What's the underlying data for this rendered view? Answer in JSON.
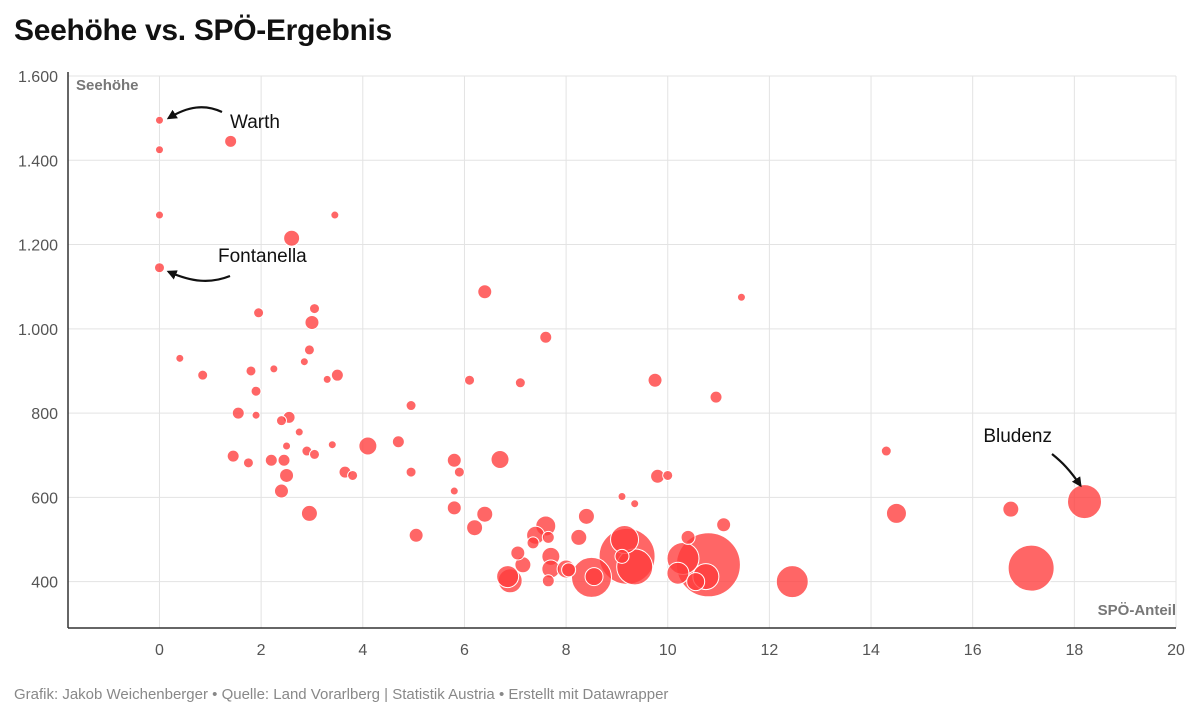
{
  "title": "Seehöhe vs. SPÖ-Ergebnis",
  "footer": "Grafik: Jakob Weichenberger • Quelle: Land Vorarlberg | Statistik Austria • Erstellt mit Datawrapper",
  "colors": {
    "point": "#ff3b3b",
    "annotation": "#111111",
    "grid": "#e3e3e3",
    "axis": "#333333"
  },
  "chart_data": {
    "type": "scatter",
    "title": "Seehöhe vs. SPÖ-Ergebnis",
    "xlabel": "SPÖ-Anteil",
    "ylabel": "Seehöhe",
    "xlim": [
      -1.8,
      20
    ],
    "ylim": [
      290,
      1600
    ],
    "x_ticks": [
      0,
      2,
      4,
      6,
      8,
      10,
      12,
      14,
      16,
      18,
      20
    ],
    "y_ticks": [
      400,
      600,
      800,
      1000,
      1200,
      1400,
      1600
    ],
    "x_tick_labels": [
      "0",
      "2",
      "4",
      "6",
      "8",
      "10",
      "12",
      "14",
      "16",
      "18",
      "20"
    ],
    "y_tick_labels": [
      "400",
      "600",
      "800",
      "1.000",
      "1.200",
      "1.400",
      "1.600"
    ],
    "grid": true,
    "size_encoding": "population (bubble size)",
    "points": [
      {
        "x": 0.0,
        "y": 1495,
        "s": 4
      },
      {
        "x": 0.0,
        "y": 1425,
        "s": 4
      },
      {
        "x": 0.0,
        "y": 1270,
        "s": 4
      },
      {
        "x": 0.0,
        "y": 1145,
        "s": 5
      },
      {
        "x": 1.4,
        "y": 1445,
        "s": 6
      },
      {
        "x": 2.6,
        "y": 1215,
        "s": 8
      },
      {
        "x": 3.45,
        "y": 1270,
        "s": 4
      },
      {
        "x": 1.95,
        "y": 1038,
        "s": 5
      },
      {
        "x": 3.05,
        "y": 1048,
        "s": 5
      },
      {
        "x": 3.0,
        "y": 1015,
        "s": 7
      },
      {
        "x": 2.95,
        "y": 950,
        "s": 5
      },
      {
        "x": 2.85,
        "y": 922,
        "s": 4
      },
      {
        "x": 0.4,
        "y": 930,
        "s": 4
      },
      {
        "x": 0.85,
        "y": 890,
        "s": 5
      },
      {
        "x": 1.8,
        "y": 900,
        "s": 5
      },
      {
        "x": 2.25,
        "y": 905,
        "s": 4
      },
      {
        "x": 1.9,
        "y": 852,
        "s": 5
      },
      {
        "x": 3.3,
        "y": 880,
        "s": 4
      },
      {
        "x": 3.5,
        "y": 890,
        "s": 6
      },
      {
        "x": 1.55,
        "y": 800,
        "s": 6
      },
      {
        "x": 1.9,
        "y": 795,
        "s": 4
      },
      {
        "x": 2.4,
        "y": 782,
        "s": 5
      },
      {
        "x": 2.55,
        "y": 790,
        "s": 6
      },
      {
        "x": 2.75,
        "y": 755,
        "s": 4
      },
      {
        "x": 2.5,
        "y": 722,
        "s": 4
      },
      {
        "x": 2.9,
        "y": 710,
        "s": 5
      },
      {
        "x": 3.05,
        "y": 702,
        "s": 5
      },
      {
        "x": 3.4,
        "y": 725,
        "s": 4
      },
      {
        "x": 1.45,
        "y": 698,
        "s": 6
      },
      {
        "x": 1.75,
        "y": 682,
        "s": 5
      },
      {
        "x": 2.2,
        "y": 688,
        "s": 6
      },
      {
        "x": 2.45,
        "y": 688,
        "s": 6
      },
      {
        "x": 2.5,
        "y": 652,
        "s": 7
      },
      {
        "x": 2.4,
        "y": 615,
        "s": 7
      },
      {
        "x": 2.95,
        "y": 562,
        "s": 8
      },
      {
        "x": 3.65,
        "y": 660,
        "s": 6
      },
      {
        "x": 3.8,
        "y": 652,
        "s": 5
      },
      {
        "x": 4.1,
        "y": 722,
        "s": 9
      },
      {
        "x": 4.7,
        "y": 732,
        "s": 6
      },
      {
        "x": 4.95,
        "y": 818,
        "s": 5
      },
      {
        "x": 4.95,
        "y": 660,
        "s": 5
      },
      {
        "x": 5.05,
        "y": 510,
        "s": 7
      },
      {
        "x": 5.8,
        "y": 688,
        "s": 7
      },
      {
        "x": 5.9,
        "y": 660,
        "s": 5
      },
      {
        "x": 5.8,
        "y": 615,
        "s": 4
      },
      {
        "x": 5.8,
        "y": 575,
        "s": 7
      },
      {
        "x": 6.1,
        "y": 878,
        "s": 5
      },
      {
        "x": 6.4,
        "y": 1088,
        "s": 7
      },
      {
        "x": 6.4,
        "y": 560,
        "s": 8
      },
      {
        "x": 6.2,
        "y": 528,
        "s": 8
      },
      {
        "x": 6.7,
        "y": 690,
        "s": 9
      },
      {
        "x": 7.1,
        "y": 872,
        "s": 5
      },
      {
        "x": 7.6,
        "y": 980,
        "s": 6
      },
      {
        "x": 7.6,
        "y": 532,
        "s": 10
      },
      {
        "x": 7.4,
        "y": 510,
        "s": 9
      },
      {
        "x": 7.65,
        "y": 505,
        "s": 6
      },
      {
        "x": 7.35,
        "y": 492,
        "s": 6
      },
      {
        "x": 7.05,
        "y": 468,
        "s": 7
      },
      {
        "x": 7.7,
        "y": 460,
        "s": 9
      },
      {
        "x": 7.15,
        "y": 440,
        "s": 8
      },
      {
        "x": 7.7,
        "y": 430,
        "s": 9
      },
      {
        "x": 6.85,
        "y": 412,
        "s": 11
      },
      {
        "x": 6.9,
        "y": 402,
        "s": 12
      },
      {
        "x": 7.65,
        "y": 402,
        "s": 6
      },
      {
        "x": 8.0,
        "y": 430,
        "s": 9
      },
      {
        "x": 8.05,
        "y": 428,
        "s": 7
      },
      {
        "x": 8.25,
        "y": 505,
        "s": 8
      },
      {
        "x": 8.4,
        "y": 555,
        "s": 8
      },
      {
        "x": 8.55,
        "y": 412,
        "s": 9
      },
      {
        "x": 8.5,
        "y": 410,
        "s": 20
      },
      {
        "x": 9.1,
        "y": 602,
        "s": 4
      },
      {
        "x": 9.35,
        "y": 585,
        "s": 4
      },
      {
        "x": 9.15,
        "y": 500,
        "s": 14
      },
      {
        "x": 9.2,
        "y": 460,
        "s": 28
      },
      {
        "x": 9.35,
        "y": 435,
        "s": 18
      },
      {
        "x": 9.1,
        "y": 460,
        "s": 7
      },
      {
        "x": 9.75,
        "y": 878,
        "s": 7
      },
      {
        "x": 9.8,
        "y": 650,
        "s": 7
      },
      {
        "x": 10.0,
        "y": 652,
        "s": 5
      },
      {
        "x": 10.3,
        "y": 455,
        "s": 16
      },
      {
        "x": 10.4,
        "y": 505,
        "s": 7
      },
      {
        "x": 10.2,
        "y": 420,
        "s": 11
      },
      {
        "x": 10.55,
        "y": 400,
        "s": 9
      },
      {
        "x": 10.8,
        "y": 440,
        "s": 32
      },
      {
        "x": 10.75,
        "y": 412,
        "s": 13
      },
      {
        "x": 10.95,
        "y": 838,
        "s": 6
      },
      {
        "x": 11.1,
        "y": 535,
        "s": 7
      },
      {
        "x": 11.45,
        "y": 1075,
        "s": 4
      },
      {
        "x": 12.45,
        "y": 400,
        "s": 16
      },
      {
        "x": 14.3,
        "y": 710,
        "s": 5
      },
      {
        "x": 14.5,
        "y": 562,
        "s": 10
      },
      {
        "x": 16.75,
        "y": 572,
        "s": 8
      },
      {
        "x": 17.15,
        "y": 432,
        "s": 23
      },
      {
        "x": 18.2,
        "y": 590,
        "s": 17
      }
    ],
    "annotations": [
      {
        "text": "Warth",
        "x": 0.0,
        "y": 1495
      },
      {
        "text": "Fontanella",
        "x": 0.0,
        "y": 1145
      },
      {
        "text": "Bludenz",
        "x": 18.2,
        "y": 590
      }
    ]
  }
}
